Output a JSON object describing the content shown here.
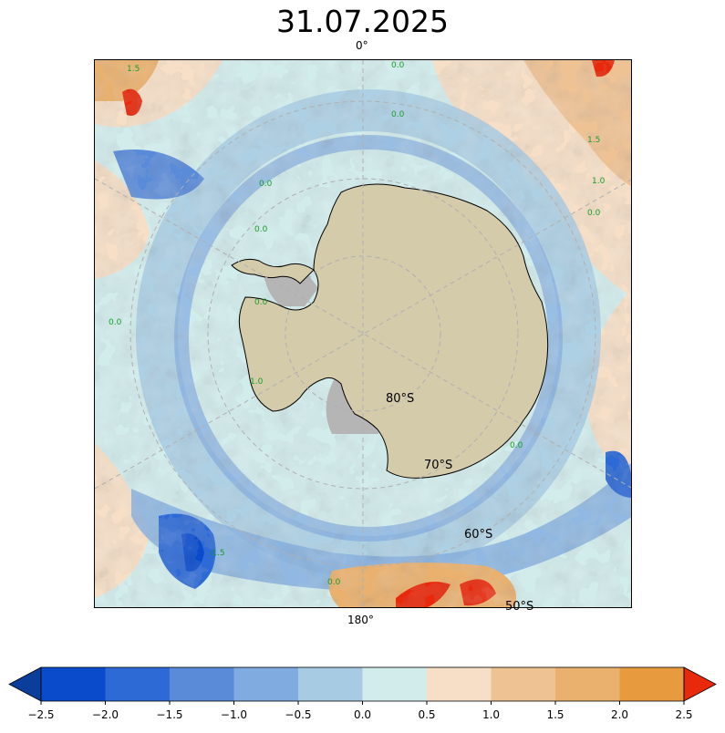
{
  "title": "31.07.2025",
  "map": {
    "lon_labels": {
      "top": "0°",
      "bottom": "180°"
    },
    "lat_labels": [
      "80°S",
      "70°S",
      "60°S",
      "50°S"
    ],
    "contour_labels": [
      "0.0",
      "0.0",
      "0.0",
      "1.5",
      "0.0",
      "1.5",
      "1.0",
      "0.0",
      "0.0",
      "-1.5",
      "0.0",
      "1.0",
      "0.0",
      "0.0"
    ],
    "colors": {
      "land": "#d4cbab",
      "ice_shelf": "#b5b5b5",
      "graticule": "#b0b0b0"
    }
  },
  "colorbar": {
    "ticks": [
      "−2.5",
      "−2.0",
      "−1.5",
      "−1.0",
      "−0.5",
      "0.0",
      "0.5",
      "1.0",
      "1.5",
      "2.0",
      "2.5"
    ],
    "colors": [
      "#0b3d9a",
      "#0a4bcc",
      "#2e6ad6",
      "#5a8bd9",
      "#80abe0",
      "#a7cbe3",
      "#d2ecec",
      "#f6dfc6",
      "#efc294",
      "#eab06e",
      "#e89b3e",
      "#e8290b"
    ]
  }
}
